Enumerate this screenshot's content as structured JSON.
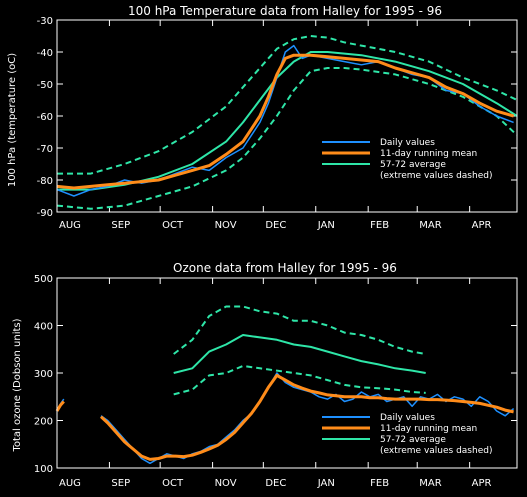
{
  "chart_data": [
    {
      "type": "line",
      "title": "100 hPa Temperature data from Halley for 1995 - 96",
      "ylabel": "100 hPa (temperature (oC)",
      "xlabel": "",
      "x_unit": "days since 1 Aug 1995",
      "xlim": [
        0,
        272
      ],
      "ylim": [
        -90,
        -30
      ],
      "yticks": [
        -90,
        -80,
        -70,
        -60,
        -50,
        -40,
        -30
      ],
      "ytick_labels": [
        "-90",
        "-80",
        "-70",
        "-60",
        "-50",
        "-40",
        "-30"
      ],
      "month_labels": [
        "AUG",
        "SEP",
        "OCT",
        "NOV",
        "DEC",
        "JAN",
        "FEB",
        "MAR",
        "APR"
      ],
      "month_starts": [
        0,
        31,
        61,
        92,
        122,
        153,
        184,
        213,
        244
      ],
      "legend": {
        "position": "lower-right",
        "entries": [
          {
            "label": "Daily values",
            "color": "#1e90ff"
          },
          {
            "label": "11-day running mean",
            "color": "#ff8c1a"
          },
          {
            "label": "57-72 average",
            "color": "#2ee6a8"
          },
          {
            "label": "(extreme values dashed)",
            "color": ""
          }
        ]
      },
      "series": [
        {
          "name": "57-72 average (upper extreme)",
          "style": "dashed",
          "color": "#2ee6a8",
          "x": [
            0,
            20,
            40,
            60,
            80,
            100,
            110,
            120,
            130,
            140,
            150,
            160,
            170,
            180,
            200,
            220,
            240,
            260,
            272
          ],
          "y": [
            -78,
            -78,
            -75,
            -71,
            -65,
            -57,
            -51,
            -45,
            -39,
            -36,
            -35,
            -35.5,
            -37,
            -38,
            -40,
            -43,
            -48,
            -52,
            -55
          ]
        },
        {
          "name": "57-72 average",
          "style": "solid",
          "color": "#2ee6a8",
          "x": [
            0,
            20,
            40,
            60,
            80,
            100,
            110,
            120,
            130,
            140,
            150,
            160,
            170,
            180,
            200,
            220,
            240,
            260,
            272
          ],
          "y": [
            -83,
            -83,
            -81.5,
            -79,
            -75,
            -68,
            -62,
            -55,
            -48,
            -43,
            -40,
            -40,
            -40.5,
            -41,
            -43,
            -46,
            -50,
            -56,
            -60
          ]
        },
        {
          "name": "57-72 average (lower extreme)",
          "style": "dashed",
          "color": "#2ee6a8",
          "x": [
            0,
            20,
            40,
            60,
            80,
            100,
            110,
            120,
            130,
            140,
            150,
            160,
            170,
            180,
            200,
            220,
            240,
            260,
            272
          ],
          "y": [
            -88,
            -89,
            -88,
            -85,
            -82,
            -77,
            -73,
            -67,
            -60,
            -52,
            -46,
            -45,
            -45,
            -45.5,
            -47,
            -50,
            -54,
            -60,
            -66
          ]
        },
        {
          "name": "Daily values",
          "style": "solid",
          "color": "#1e90ff",
          "x": [
            0,
            10,
            20,
            30,
            40,
            50,
            60,
            70,
            80,
            90,
            100,
            110,
            115,
            120,
            125,
            130,
            135,
            140,
            145,
            150,
            160,
            170,
            180,
            190,
            200,
            210,
            220,
            230,
            240,
            250,
            260,
            270
          ],
          "y": [
            -83,
            -85,
            -83,
            -82,
            -80,
            -81,
            -80,
            -78,
            -76,
            -77,
            -73,
            -70,
            -66,
            -62,
            -56,
            -48,
            -40,
            -38,
            -42,
            -41,
            -42,
            -43,
            -44,
            -43,
            -45,
            -47,
            -48,
            -52,
            -53,
            -57,
            -60,
            -62
          ]
        },
        {
          "name": "11-day running mean",
          "style": "solid",
          "color": "#ff8c1a",
          "x": [
            0,
            10,
            20,
            30,
            40,
            50,
            60,
            70,
            80,
            90,
            100,
            110,
            115,
            120,
            125,
            130,
            135,
            140,
            145,
            150,
            160,
            170,
            180,
            190,
            200,
            210,
            220,
            230,
            240,
            250,
            260,
            270
          ],
          "y": [
            -82,
            -82.5,
            -82,
            -81.5,
            -81,
            -80.5,
            -80,
            -78.5,
            -77,
            -75.5,
            -72,
            -68,
            -64,
            -60,
            -54,
            -47,
            -42,
            -41,
            -41,
            -41,
            -41.5,
            -42,
            -42.5,
            -43,
            -45,
            -46.5,
            -48,
            -51,
            -53,
            -56,
            -58.5,
            -60
          ]
        }
      ]
    },
    {
      "type": "line",
      "title": "Ozone data from Halley for 1995 - 96",
      "ylabel": "Total ozone (Dobson units)",
      "xlabel": "",
      "x_unit": "days since 1 Aug 1995",
      "xlim": [
        0,
        272
      ],
      "ylim": [
        100,
        500
      ],
      "yticks": [
        100,
        200,
        300,
        400,
        500
      ],
      "ytick_labels": [
        "100",
        "200",
        "300",
        "400",
        "500"
      ],
      "month_labels": [
        "AUG",
        "SEP",
        "OCT",
        "NOV",
        "DEC",
        "JAN",
        "FEB",
        "MAR",
        "APR"
      ],
      "month_starts": [
        0,
        31,
        61,
        92,
        122,
        153,
        184,
        213,
        244
      ],
      "legend": {
        "position": "lower-right",
        "entries": [
          {
            "label": "Daily values",
            "color": "#1e90ff"
          },
          {
            "label": "11-day running mean",
            "color": "#ff8c1a"
          },
          {
            "label": "57-72 average",
            "color": "#2ee6a8"
          },
          {
            "label": "(extreme values dashed)",
            "color": ""
          }
        ]
      },
      "series": [
        {
          "name": "57-72 average (upper extreme)",
          "style": "dashed",
          "color": "#2ee6a8",
          "x": [
            69,
            80,
            90,
            100,
            110,
            120,
            130,
            140,
            150,
            160,
            170,
            180,
            190,
            200,
            210,
            218
          ],
          "y": [
            340,
            370,
            420,
            440,
            440,
            430,
            425,
            410,
            410,
            400,
            385,
            380,
            370,
            355,
            345,
            340
          ]
        },
        {
          "name": "57-72 average",
          "style": "solid",
          "color": "#2ee6a8",
          "x": [
            69,
            80,
            90,
            100,
            110,
            120,
            130,
            140,
            150,
            160,
            170,
            180,
            190,
            200,
            210,
            218
          ],
          "y": [
            300,
            310,
            345,
            360,
            380,
            375,
            370,
            360,
            355,
            345,
            335,
            325,
            318,
            310,
            305,
            300
          ]
        },
        {
          "name": "57-72 average (lower extreme)",
          "style": "dashed",
          "color": "#2ee6a8",
          "x": [
            69,
            80,
            90,
            100,
            110,
            120,
            130,
            140,
            150,
            160,
            170,
            180,
            190,
            200,
            210,
            218
          ],
          "y": [
            255,
            265,
            295,
            300,
            315,
            310,
            305,
            300,
            295,
            285,
            275,
            270,
            268,
            265,
            260,
            258
          ]
        },
        {
          "name": "Daily values",
          "style": "solid",
          "color": "#1e90ff",
          "segments": [
            {
              "x": [
                0,
                2,
                4
              ],
              "y": [
                220,
                235,
                245
              ]
            },
            {
              "x": [
                26,
                30,
                35,
                40,
                45,
                50,
                55,
                60,
                65,
                70,
                75,
                80,
                85,
                90,
                95,
                100,
                105,
                110,
                115,
                120,
                125,
                130,
                135,
                140,
                145,
                150,
                155,
                160,
                165,
                170,
                175,
                180,
                185,
                190,
                195,
                200,
                205,
                210,
                215,
                220,
                225,
                230,
                235,
                240,
                245,
                250,
                255,
                260,
                265,
                270
              ],
              "y": [
                210,
                200,
                180,
                160,
                140,
                120,
                110,
                120,
                130,
                125,
                120,
                130,
                135,
                145,
                150,
                165,
                180,
                200,
                215,
                240,
                270,
                300,
                280,
                270,
                265,
                260,
                250,
                245,
                255,
                240,
                245,
                260,
                250,
                255,
                240,
                245,
                250,
                230,
                250,
                245,
                255,
                240,
                250,
                245,
                230,
                250,
                240,
                220,
                210,
                225
              ]
            }
          ]
        },
        {
          "name": "11-day running mean",
          "style": "solid",
          "color": "#ff8c1a",
          "segments": [
            {
              "x": [
                0,
                2,
                4
              ],
              "y": [
                220,
                232,
                240
              ]
            },
            {
              "x": [
                26,
                30,
                35,
                40,
                45,
                50,
                55,
                60,
                65,
                70,
                75,
                80,
                85,
                90,
                95,
                100,
                105,
                110,
                115,
                120,
                125,
                130,
                135,
                140,
                145,
                150,
                155,
                160,
                165,
                170,
                175,
                180,
                185,
                190,
                195,
                200,
                205,
                210,
                215,
                220,
                225,
                230,
                235,
                240,
                245,
                250,
                255,
                260,
                265,
                270
              ],
              "y": [
                208,
                195,
                175,
                155,
                140,
                125,
                118,
                120,
                125,
                125,
                124,
                127,
                133,
                140,
                148,
                160,
                175,
                195,
                215,
                240,
                270,
                295,
                285,
                275,
                268,
                262,
                258,
                254,
                252,
                250,
                250,
                250,
                248,
                248,
                246,
                245,
                245,
                245,
                245,
                244,
                244,
                243,
                242,
                240,
                238,
                236,
                232,
                228,
                222,
                218
              ]
            }
          ]
        }
      ]
    }
  ]
}
